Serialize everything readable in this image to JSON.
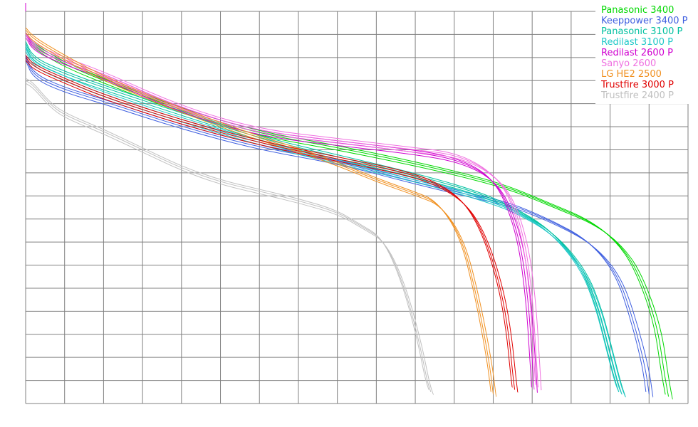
{
  "chart_data": {
    "type": "line",
    "title": "",
    "xlabel": "",
    "ylabel": "",
    "grid": true,
    "legend_position": "top-right",
    "xlim": [
      0,
      17
    ],
    "ylim": [
      0,
      17
    ],
    "series": [
      {
        "name": "Panasonic 3400",
        "color": "#00d800",
        "x": [
          0,
          0.2,
          1,
          2,
          4,
          6,
          8,
          10,
          11.5,
          12.5,
          13.5,
          14.5,
          15.2,
          15.7,
          16.2,
          16.4,
          16.5
        ],
        "y": [
          16.0,
          15.5,
          14.7,
          14.0,
          12.7,
          11.7,
          11.1,
          10.4,
          9.8,
          9.3,
          8.6,
          7.9,
          7.0,
          5.8,
          3.5,
          1.2,
          0.3
        ]
      },
      {
        "name": "Keeppower 3400 P",
        "color": "#4060e0",
        "x": [
          0,
          0.2,
          1,
          2,
          4,
          6,
          8,
          10,
          11.5,
          12.5,
          13.5,
          14.5,
          15.2,
          15.6,
          15.9,
          16.0
        ],
        "y": [
          15.0,
          14.2,
          13.6,
          13.1,
          12.0,
          11.1,
          10.5,
          9.6,
          9.0,
          8.6,
          7.9,
          7.0,
          5.6,
          3.6,
          1.6,
          0.4
        ]
      },
      {
        "name": "Panasonic 3100 P",
        "color": "#00c0a0",
        "x": [
          0,
          0.2,
          1,
          2,
          4,
          6,
          8,
          10,
          11.5,
          12.5,
          13.5,
          14.3,
          14.7,
          15.0,
          15.2,
          15.3
        ],
        "y": [
          15.6,
          14.9,
          14.3,
          13.7,
          12.6,
          11.5,
          10.7,
          9.9,
          9.2,
          8.5,
          7.5,
          5.9,
          4.2,
          2.2,
          0.9,
          0.4
        ]
      },
      {
        "name": "Redilast 3100 P",
        "color": "#20c8c8",
        "x": [
          0,
          0.2,
          1,
          2,
          4,
          6,
          8,
          10,
          11.5,
          12.5,
          13.5,
          14.3,
          14.7,
          15.0,
          15.2,
          15.3
        ],
        "y": [
          15.4,
          14.7,
          14.1,
          13.4,
          12.3,
          11.3,
          10.5,
          9.7,
          9.0,
          8.4,
          7.4,
          5.8,
          4.1,
          2.1,
          0.8,
          0.4
        ]
      },
      {
        "name": "Redilast 2600 P",
        "color": "#d000d0",
        "x": [
          0,
          0.2,
          1,
          2,
          4,
          6,
          8,
          10,
          11,
          11.8,
          12.3,
          12.7,
          12.9,
          13.0,
          13.05
        ],
        "y": [
          16.0,
          15.4,
          14.8,
          14.2,
          12.7,
          11.7,
          11.3,
          10.9,
          10.6,
          10.0,
          9.0,
          7.0,
          4.5,
          2.0,
          0.6
        ]
      },
      {
        "name": "Sanyo 2600",
        "color": "#f070e0",
        "x": [
          0,
          0.2,
          1,
          2,
          4,
          6,
          8,
          10,
          11,
          11.8,
          12.4,
          12.8,
          13.0,
          13.1,
          13.15
        ],
        "y": [
          16.0,
          15.5,
          14.9,
          14.3,
          12.8,
          11.8,
          11.4,
          11.0,
          10.8,
          10.2,
          9.2,
          7.2,
          4.8,
          2.2,
          0.7
        ]
      },
      {
        "name": "LG HE2 2500",
        "color": "#f09020",
        "x": [
          0,
          0.2,
          1,
          2,
          4,
          6,
          7,
          8,
          9,
          10,
          10.6,
          11.2,
          11.6,
          11.9,
          12.0
        ],
        "y": [
          16.2,
          15.8,
          15.0,
          14.1,
          12.7,
          11.5,
          11.0,
          10.4,
          9.7,
          9.1,
          8.7,
          7.2,
          4.5,
          1.8,
          0.4
        ]
      },
      {
        "name": "Trustfire 3000 P",
        "color": "#e00000",
        "x": [
          0,
          0.2,
          1,
          2,
          4,
          6,
          8,
          9.5,
          10.5,
          11.3,
          11.8,
          12.2,
          12.4,
          12.5,
          12.55
        ],
        "y": [
          15.0,
          14.6,
          14.0,
          13.3,
          12.2,
          11.3,
          10.6,
          10.1,
          9.6,
          8.7,
          7.2,
          5.0,
          3.0,
          1.3,
          0.6
        ]
      },
      {
        "name": "Trustfire 2400 P",
        "color": "#c0c0c0",
        "x": [
          0,
          0.2,
          0.6,
          1,
          2,
          3,
          4,
          5,
          6,
          7,
          8,
          8.6,
          9.2,
          9.7,
          10.1,
          10.3,
          10.4
        ],
        "y": [
          14.0,
          13.8,
          13.0,
          12.5,
          11.8,
          11.0,
          10.2,
          9.6,
          9.2,
          8.8,
          8.3,
          7.7,
          7.1,
          5.2,
          2.7,
          1.0,
          0.5
        ]
      }
    ]
  }
}
